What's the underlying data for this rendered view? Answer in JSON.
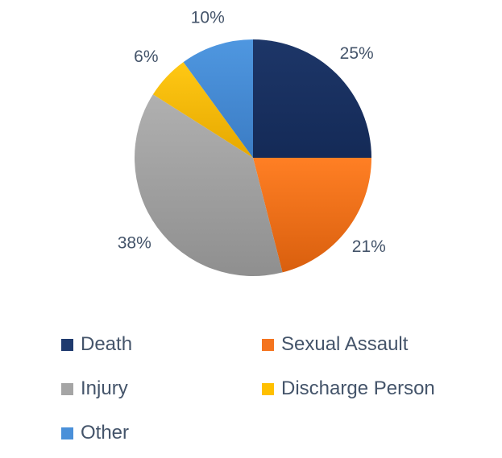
{
  "chart_data": {
    "type": "pie",
    "categories": [
      "Death",
      "Sexual Assault",
      "Injury",
      "Discharge Person",
      "Other"
    ],
    "values": [
      25,
      21,
      38,
      6,
      10
    ],
    "data_labels": [
      "25%",
      "21%",
      "38%",
      "6%",
      "10%"
    ],
    "colors": [
      "#1f3a6e",
      "#f4741f",
      "#a5a5a5",
      "#ffc000",
      "#4a90d9"
    ],
    "legend_position": "bottom",
    "start": "12 o'clock",
    "direction": "clockwise"
  }
}
